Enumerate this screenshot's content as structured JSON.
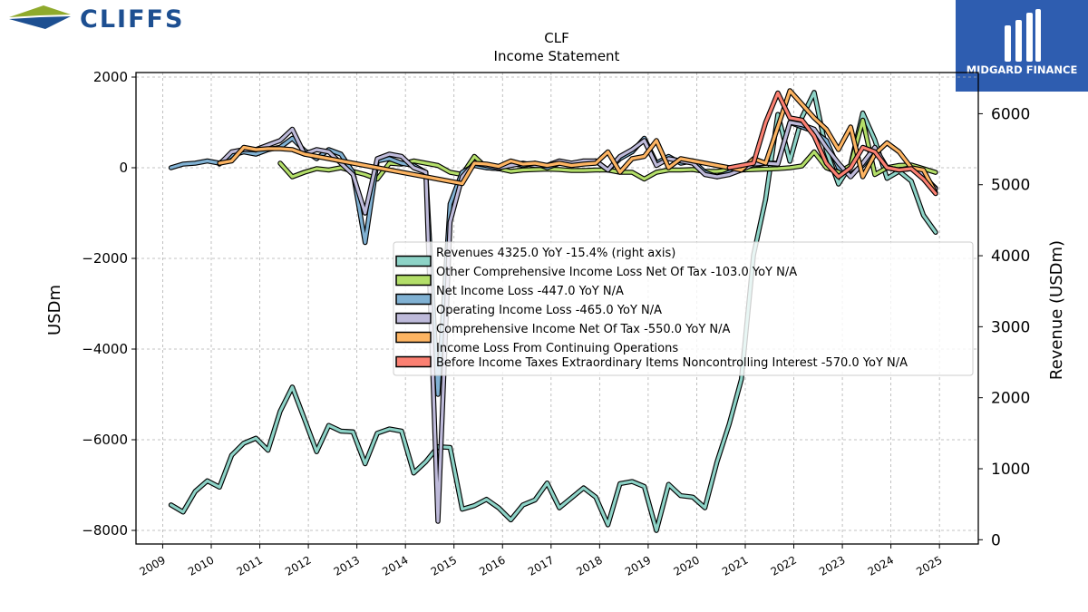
{
  "header": {
    "company_logo_text": "CLIFFS",
    "watermark_text": "MIDGARD FINANCE"
  },
  "chart_data": {
    "type": "line",
    "title": "CLF",
    "subtitle": "Income Statement",
    "ylabel": "USDm",
    "y2label": "Revenue (USDm)",
    "ylim": [
      -8300,
      2100
    ],
    "y2lim": [
      -60,
      6580
    ],
    "xlim": [
      2008.45,
      2025.8
    ],
    "grid": true,
    "legend_position": "center-right",
    "x_ticks": [
      "2009",
      "2010",
      "2011",
      "2012",
      "2013",
      "2014",
      "2015",
      "2016",
      "2017",
      "2018",
      "2019",
      "2020",
      "2021",
      "2022",
      "2023",
      "2024",
      "2025"
    ],
    "y_ticks": [
      "2000",
      "0",
      "−2000",
      "−4000",
      "−6000",
      "−8000"
    ],
    "y2_ticks": [
      "6000",
      "5000",
      "4000",
      "3000",
      "2000",
      "1000",
      "0"
    ],
    "series": [
      {
        "name": "Revenues",
        "legend": "Revenues  4325.0 YoY -15.4% (right axis)",
        "color": "#8dd3c7",
        "axis": "right",
        "x": [
          2009.17,
          2009.42,
          2009.67,
          2009.92,
          2010.17,
          2010.42,
          2010.67,
          2010.92,
          2011.17,
          2011.42,
          2011.67,
          2011.92,
          2012.17,
          2012.42,
          2012.67,
          2012.92,
          2013.17,
          2013.42,
          2013.67,
          2013.92,
          2014.17,
          2014.42,
          2014.67,
          2014.92,
          2015.17,
          2015.42,
          2015.67,
          2015.92,
          2016.17,
          2016.42,
          2016.67,
          2016.92,
          2017.17,
          2017.42,
          2017.67,
          2017.92,
          2018.17,
          2018.42,
          2018.67,
          2018.92,
          2019.17,
          2019.42,
          2019.67,
          2019.92,
          2020.17,
          2020.42,
          2020.67,
          2020.92,
          2021.17,
          2021.42,
          2021.67,
          2021.92,
          2022.17,
          2022.42,
          2022.67,
          2022.92,
          2023.17,
          2023.42,
          2023.67,
          2023.92,
          2024.17,
          2024.42,
          2024.67,
          2024.92
        ],
        "values": [
          490,
          390,
          680,
          830,
          740,
          1190,
          1360,
          1430,
          1260,
          1810,
          2150,
          1700,
          1240,
          1610,
          1530,
          1520,
          1070,
          1500,
          1560,
          1530,
          940,
          1100,
          1310,
          1300,
          430,
          480,
          570,
          450,
          280,
          490,
          560,
          800,
          450,
          590,
          730,
          600,
          210,
          790,
          820,
          750,
          130,
          780,
          620,
          600,
          450,
          1100,
          1630,
          2260,
          4010,
          4800,
          5990,
          5330,
          5950,
          6300,
          5480,
          5010,
          5280,
          6010,
          5630,
          5090,
          5190,
          5050,
          4570,
          4330
        ]
      },
      {
        "name": "Other Comprehensive Income Loss Net Of Tax",
        "legend": "Other Comprehensive Income Loss Net Of Tax  -103.0 YoY N/A",
        "color": "#b3de69",
        "axis": "left",
        "x": [
          2011.42,
          2011.67,
          2011.92,
          2012.17,
          2012.42,
          2012.67,
          2012.92,
          2013.17,
          2013.42,
          2013.67,
          2013.92,
          2014.17,
          2014.42,
          2014.67,
          2014.92,
          2015.17,
          2015.42,
          2015.67,
          2015.92,
          2016.17,
          2016.42,
          2016.67,
          2016.92,
          2017.17,
          2017.42,
          2017.67,
          2017.92,
          2018.17,
          2018.42,
          2018.67,
          2018.92,
          2019.17,
          2019.42,
          2019.67,
          2019.92,
          2020.17,
          2020.42,
          2020.67,
          2020.92,
          2021.17,
          2021.42,
          2021.67,
          2021.92,
          2022.17,
          2022.42,
          2022.67,
          2022.92,
          2023.17,
          2023.42,
          2023.67,
          2023.92,
          2024.17,
          2024.42,
          2024.67,
          2024.92
        ],
        "values": [
          100,
          -200,
          -100,
          -20,
          -50,
          0,
          -80,
          -150,
          -250,
          100,
          80,
          150,
          100,
          50,
          -100,
          -150,
          250,
          0,
          -20,
          -80,
          -50,
          -40,
          -30,
          -40,
          -60,
          -60,
          -50,
          -50,
          -100,
          -100,
          -250,
          -100,
          -50,
          -50,
          -40,
          -80,
          -80,
          -50,
          -50,
          -40,
          -30,
          -20,
          0,
          40,
          350,
          0,
          -100,
          50,
          1050,
          -150,
          0,
          50,
          60,
          -20,
          -103
        ]
      },
      {
        "name": "Net Income Loss",
        "legend": "Net Income Loss  -447.0 YoY N/A",
        "color": "#80b1d3",
        "axis": "left",
        "x": [
          2009.17,
          2009.42,
          2009.67,
          2009.92,
          2010.17,
          2010.42,
          2010.67,
          2010.92,
          2011.17,
          2011.42,
          2011.67,
          2011.92,
          2012.17,
          2012.42,
          2012.67,
          2012.92,
          2013.17,
          2013.42,
          2013.67,
          2013.92,
          2014.17,
          2014.42,
          2014.67,
          2014.92,
          2015.17,
          2015.42,
          2015.67,
          2015.92,
          2016.17,
          2016.42,
          2016.67,
          2016.92,
          2017.17,
          2017.42,
          2017.67,
          2017.92,
          2018.17,
          2018.42,
          2018.67,
          2018.92,
          2019.17,
          2019.42,
          2019.67,
          2019.92,
          2020.17,
          2020.42,
          2020.67,
          2020.92,
          2021.17,
          2021.42,
          2021.67,
          2021.92,
          2022.17,
          2022.42,
          2022.67,
          2022.92,
          2023.17,
          2023.42,
          2023.67,
          2023.92,
          2024.17,
          2024.42,
          2024.67,
          2024.92
        ],
        "values": [
          0,
          80,
          100,
          150,
          100,
          270,
          350,
          300,
          400,
          450,
          650,
          380,
          200,
          400,
          300,
          -100,
          -1650,
          150,
          200,
          100,
          50,
          -100,
          -5000,
          -800,
          -100,
          50,
          0,
          -20,
          100,
          50,
          100,
          0,
          100,
          80,
          100,
          150,
          -50,
          200,
          350,
          650,
          100,
          250,
          100,
          150,
          -100,
          -200,
          -100,
          0,
          50,
          100,
          100,
          1000,
          900,
          800,
          600,
          0,
          -150,
          50,
          400,
          0,
          -50,
          -20,
          -200,
          -447
        ]
      },
      {
        "name": "Operating Income Loss",
        "legend": "Operating Income Loss  -465.0 YoY N/A",
        "color": "#bebada",
        "axis": "left",
        "x": [
          2010.17,
          2010.42,
          2010.67,
          2010.92,
          2011.17,
          2011.42,
          2011.67,
          2011.92,
          2012.17,
          2012.42,
          2012.67,
          2012.92,
          2013.17,
          2013.42,
          2013.67,
          2013.92,
          2014.17,
          2014.42,
          2014.67,
          2014.92,
          2015.17,
          2015.42,
          2015.67,
          2015.92,
          2016.17,
          2016.42,
          2016.67,
          2016.92,
          2017.17,
          2017.42,
          2017.67,
          2017.92,
          2018.17,
          2018.42,
          2018.67,
          2018.92,
          2019.17,
          2019.42,
          2019.67,
          2019.92,
          2020.17,
          2020.42,
          2020.67,
          2020.92,
          2021.17,
          2021.42,
          2021.67,
          2021.92,
          2022.17,
          2022.42,
          2022.67,
          2022.92,
          2023.17,
          2023.42,
          2023.67,
          2023.92,
          2024.17,
          2024.42,
          2024.67,
          2024.92
        ],
        "values": [
          80,
          350,
          400,
          400,
          500,
          600,
          850,
          300,
          400,
          350,
          100,
          -150,
          -1000,
          200,
          300,
          250,
          0,
          -100,
          -7800,
          -1200,
          -200,
          100,
          50,
          0,
          50,
          100,
          50,
          50,
          150,
          100,
          150,
          150,
          -50,
          250,
          400,
          600,
          50,
          200,
          150,
          100,
          -150,
          -200,
          -150,
          -50,
          80,
          100,
          80,
          1000,
          950,
          850,
          450,
          100,
          -200,
          100,
          450,
          0,
          -50,
          0,
          -150,
          -465
        ]
      },
      {
        "name": "Comprehensive Income Net Of Tax",
        "legend": "Comprehensive Income Net Of Tax  -550.0 YoY N/A",
        "color": "#fdb462",
        "axis": "left",
        "x": [
          2010.17,
          2010.42,
          2010.67,
          2010.92,
          2011.17,
          2011.42,
          2011.67,
          2011.92,
          2012.17,
          2012.42,
          2012.67,
          2012.92,
          2013.17,
          2013.42,
          2013.67,
          2013.92,
          2014.17,
          2014.42,
          2014.67,
          2014.92,
          2015.17,
          2015.42,
          2015.67,
          2015.92,
          2016.17,
          2016.42,
          2016.67,
          2016.92,
          2017.17,
          2017.42,
          2017.67,
          2017.92,
          2018.17,
          2018.42,
          2018.67,
          2018.92,
          2019.17,
          2019.42,
          2019.67,
          2019.92,
          2020.17,
          2020.42,
          2020.67,
          2020.92,
          2021.17,
          2021.42,
          2021.67,
          2021.92,
          2022.17,
          2022.42,
          2022.67,
          2022.92,
          2023.17,
          2023.42,
          2023.67,
          2023.92,
          2024.17,
          2024.42,
          2024.67,
          2024.92
        ],
        "values": [
          100,
          150,
          450,
          400,
          420,
          420,
          400,
          300,
          250,
          200,
          150,
          100,
          50,
          0,
          -50,
          -100,
          -150,
          -200,
          -250,
          -300,
          -350,
          100,
          80,
          30,
          150,
          80,
          100,
          50,
          100,
          50,
          80,
          100,
          350,
          -100,
          200,
          250,
          600,
          0,
          200,
          150,
          100,
          50,
          0,
          -50,
          200,
          100,
          900,
          1700,
          1400,
          1100,
          850,
          400,
          900,
          -200,
          300,
          550,
          350,
          0,
          -50,
          -550
        ]
      },
      {
        "name": "Income Loss From Continuing Operations Before Income Taxes Extraordinary Items Noncontrolling Interest",
        "legend": "Income Loss From Continuing Operations\nBefore Income Taxes Extraordinary Items Noncontrolling Interest  -570.0 YoY N/A",
        "color": "#fb8072",
        "axis": "left",
        "x": [
          2020.67,
          2020.92,
          2021.17,
          2021.42,
          2021.67,
          2021.92,
          2022.17,
          2022.42,
          2022.67,
          2022.92,
          2023.17,
          2023.42,
          2023.67,
          2023.92,
          2024.17,
          2024.42,
          2024.67,
          2024.92
        ],
        "values": [
          0,
          50,
          100,
          1000,
          1650,
          1100,
          1050,
          700,
          100,
          -200,
          0,
          450,
          350,
          0,
          -50,
          -20,
          -250,
          -570
        ]
      }
    ]
  }
}
